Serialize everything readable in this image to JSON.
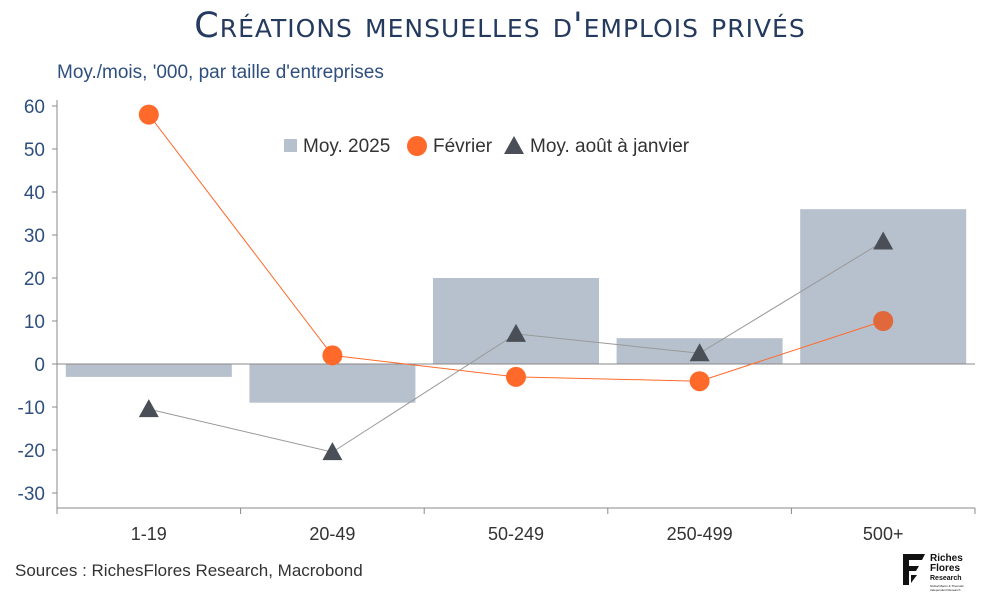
{
  "title": "Créations mensuelles d'emplois privés",
  "source": "Sources : RichesFlores Research, Macrobond",
  "logo": {
    "line1": "Riches",
    "line2": "Flores",
    "line3": "Research",
    "tagline1": "Global Macro & Thematic",
    "tagline2": "Independent Research"
  },
  "chart_data": {
    "type": "bar",
    "title": "Créations mensuelles d'emplois privés",
    "ylabel": "Moy./mois, '000, par taille d'entreprises",
    "xlabel": "",
    "categories": [
      "1-19",
      "20-49",
      "50-249",
      "250-499",
      "500+"
    ],
    "ylim": [
      -30,
      60
    ],
    "yticks": [
      -30,
      -20,
      -10,
      0,
      10,
      20,
      30,
      40,
      50,
      60
    ],
    "grid": false,
    "legend_position": "top-center",
    "series": [
      {
        "name": "Moy. 2025",
        "kind": "bar",
        "color": "#b7c0cd",
        "values": [
          -3,
          -9,
          20,
          6,
          36
        ]
      },
      {
        "name": "Février",
        "kind": "line-marker-circle",
        "color": "#ff6a2b",
        "values": [
          58,
          2,
          -3,
          -4,
          10
        ]
      },
      {
        "name": "Moy. août à janvier",
        "kind": "line-marker-triangle",
        "color": "#4a4f57",
        "values": [
          -10.5,
          -20.5,
          7,
          2.5,
          28.5
        ]
      }
    ]
  }
}
